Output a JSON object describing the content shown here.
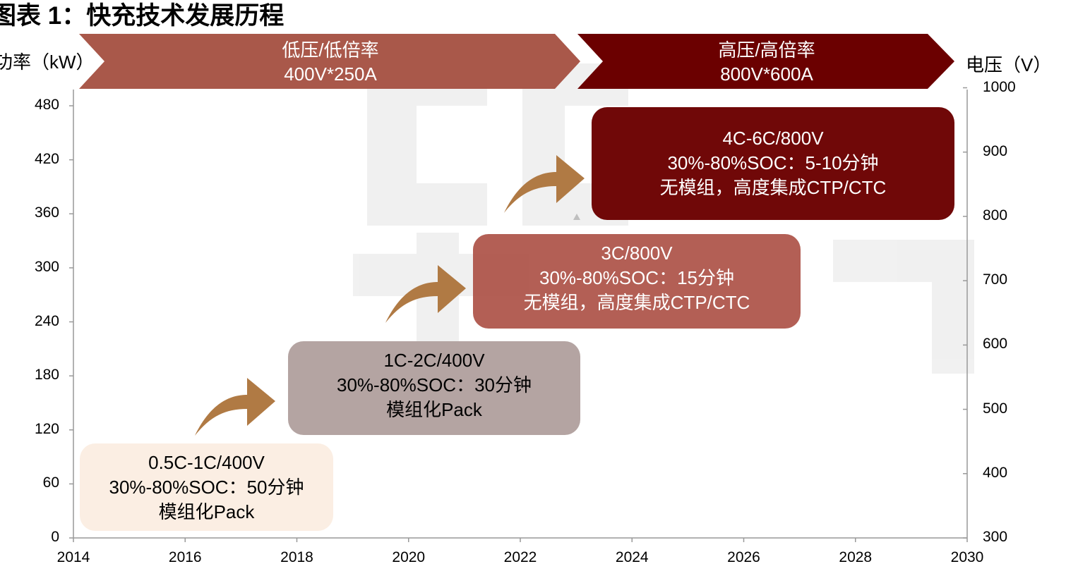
{
  "title": "图表 1：快充技术发展历程",
  "left_axis_label": "功率（kW）",
  "right_axis_label": "电压（V）",
  "banners": [
    {
      "line1": "低压/低倍率",
      "line2": "400V*250A"
    },
    {
      "line1": "高压/高倍率",
      "line2": "800V*600A"
    }
  ],
  "stages": [
    {
      "line1": "0.5C-1C/400V",
      "line2": "30%-80%SOC：50分钟",
      "line3": "模组化Pack"
    },
    {
      "line1": "1C-2C/400V",
      "line2": "30%-80%SOC：30分钟",
      "line3": "模组化Pack"
    },
    {
      "line1": "3C/800V",
      "line2": "30%-80%SOC：15分钟",
      "line3": "无模组，高度集成CTP/CTC"
    },
    {
      "line1": "4C-6C/800V",
      "line2": "30%-80%SOC：5-10分钟",
      "line3": "无模组，高度集成CTP/CTC"
    }
  ],
  "colors": {
    "banner_low": "#a9584a",
    "banner_high": "#6b0000",
    "stage1": "#fbeee3",
    "stage2": "#b4a4a2",
    "stage3": "#b1584c",
    "stage4": "#6b0000",
    "arrow": "#b07a44",
    "watermark": "#ececec"
  },
  "chart_data": {
    "type": "table",
    "title": "图表 1：快充技术发展历程",
    "x": {
      "label": "",
      "range": [
        2014,
        2030
      ],
      "ticks": [
        "2014",
        "2016",
        "2018",
        "2020",
        "2022",
        "2024",
        "2026",
        "2028",
        "2030"
      ]
    },
    "y_left": {
      "label": "功率（kW）",
      "range": [
        0,
        500
      ],
      "ticks": [
        "0",
        "60",
        "120",
        "180",
        "240",
        "300",
        "360",
        "420",
        "480"
      ]
    },
    "y_right": {
      "label": "电压（V）",
      "range": [
        300,
        1000
      ],
      "ticks": [
        "300",
        "400",
        "500",
        "600",
        "700",
        "800",
        "900",
        "1000"
      ]
    }
  }
}
